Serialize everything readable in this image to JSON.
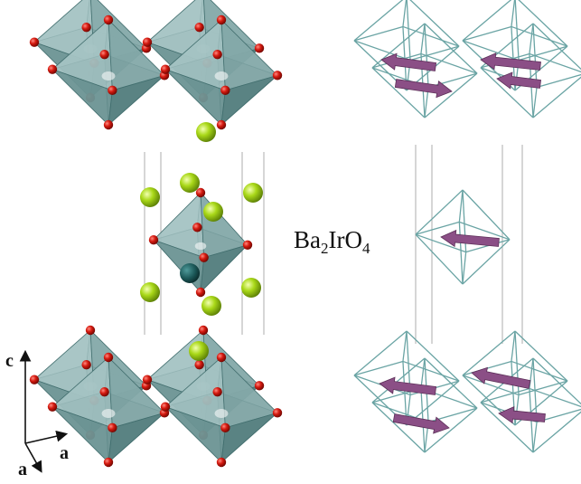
{
  "formula": {
    "base1": "Ba",
    "sub1": "2",
    "base2": "IrO",
    "sub2": "4"
  },
  "axes": {
    "c_label": "c",
    "a1_label": "a",
    "a2_label": "a"
  },
  "colors": {
    "octahedron_fill": "#5e8f8f",
    "octahedron_edge": "#3d6a6a",
    "oxygen": "#c8190e",
    "barium": "#a6d617",
    "iridium": "#1e5f5f",
    "wireframe": "#6aa4a4",
    "moment_arrow": "#8b4f86"
  },
  "icons": {
    "axes": "crystal-axes-icon"
  }
}
